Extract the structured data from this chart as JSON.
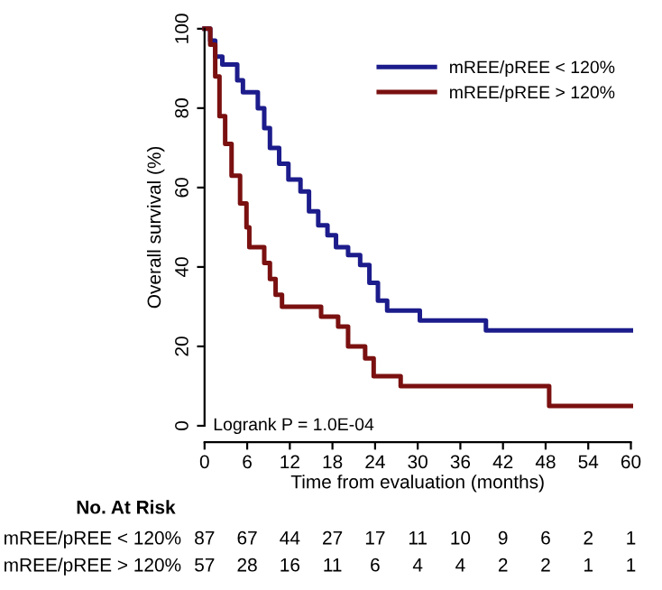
{
  "chart_data": {
    "type": "step",
    "xlabel": "Time from evaluation (months)",
    "ylabel": "Overall survival (%)",
    "series": [
      {
        "name": "mREE/pREE < 120%",
        "color": "#1c1c8c",
        "x": [
          0,
          0.8,
          1.5,
          2.5,
          4.6,
          5.4,
          7.5,
          8.4,
          9.2,
          10.5,
          11.8,
          13.5,
          14.7,
          16,
          17.3,
          18.5,
          20.2,
          21.9,
          23.2,
          24.4,
          25.7,
          30.3,
          39.6,
          60
        ],
        "values": [
          100,
          97,
          93,
          91,
          87,
          84,
          80,
          75,
          70,
          66,
          62,
          59,
          54,
          50.5,
          48,
          45,
          43,
          40.5,
          36,
          31.5,
          29,
          26.5,
          24,
          24
        ]
      },
      {
        "name": "mREE/pREE > 120%",
        "color": "#7a1010",
        "x": [
          0,
          0.8,
          1.5,
          2.1,
          2.9,
          3.8,
          5,
          5.9,
          6.3,
          8.4,
          9.2,
          10,
          10.9,
          16.4,
          18.8,
          20.2,
          22.6,
          23.8,
          27.6,
          48.5,
          60
        ],
        "values": [
          100,
          96,
          88,
          78,
          71,
          63,
          56,
          50,
          45,
          41,
          37,
          33,
          30,
          27.5,
          25,
          20,
          17,
          12.5,
          10,
          5,
          5
        ]
      }
    ],
    "xlim": [
      0,
      60
    ],
    "xticks": [
      0,
      6,
      12,
      18,
      24,
      30,
      36,
      42,
      48,
      54,
      60
    ],
    "ylim": [
      0,
      100
    ],
    "yticks": [
      0,
      20,
      40,
      60,
      80,
      100
    ],
    "grid": false,
    "legend": "top right",
    "marker": "none",
    "line_style": "solid",
    "annotations": [
      "Logrank P = 1.0E-04",
      "No. At Risk",
      "mREE/pREE < 120%",
      "mREE/pREE > 120%",
      "87 67 44 27 17 11 10 9 6 2 1",
      "57 28 16 11 6 4 4 2 2 1 1"
    ]
  }
}
